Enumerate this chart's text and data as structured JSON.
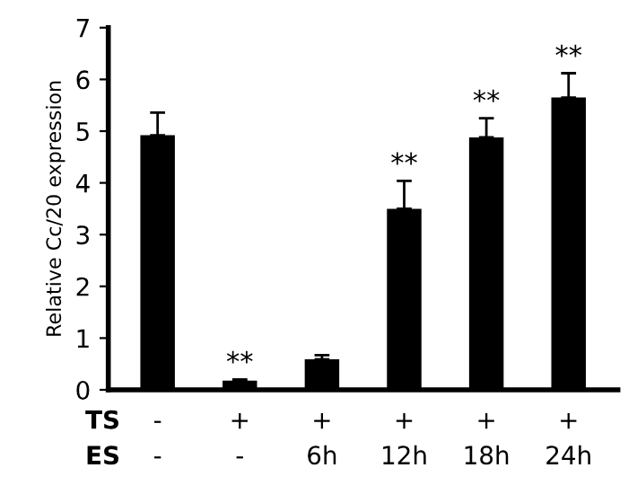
{
  "chart_data": {
    "type": "bar",
    "ylabel": "Relative Cc/20 expression",
    "categories": [
      "-\n-",
      "+\n-",
      "+\n6h",
      "+\n12h",
      "+\n18h",
      "+\n24h"
    ],
    "values": [
      4.92,
      0.18,
      0.59,
      3.5,
      4.88,
      5.65
    ],
    "errors": [
      0.44,
      0.02,
      0.08,
      0.54,
      0.37,
      0.47
    ],
    "color": "#000000",
    "ylim": [
      0,
      7
    ],
    "yticks": [
      0,
      1,
      2,
      3,
      4,
      5,
      6,
      7
    ],
    "annotations": [
      "TS\nES",
      {
        "text": "**",
        "x": "+\n-",
        "y": 0.2
      },
      {
        "text": "**",
        "x": "+\n12h",
        "y": 4.04
      },
      {
        "text": "**",
        "x": "+\n18h",
        "y": 5.25
      },
      {
        "text": "**",
        "x": "+\n24h",
        "y": 6.12
      }
    ]
  }
}
